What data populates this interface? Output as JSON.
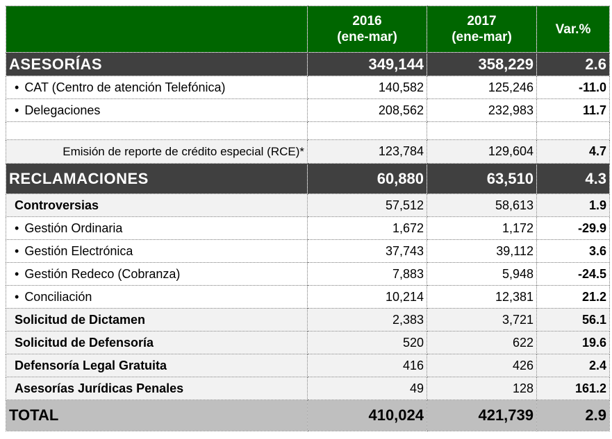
{
  "header": {
    "col_2016": "2016\n(ene-mar)",
    "col_2016_year": "2016",
    "col_2016_period": "(ene-mar)",
    "col_2017_year": "2017",
    "col_2017_period": "(ene-mar)",
    "col_var": "Var.%"
  },
  "colors": {
    "header_green": "#006600",
    "section_dark": "#404040",
    "total_gray": "#bfbfbf",
    "row_light": "#f2f2f2"
  },
  "asesorias": {
    "label": "ASESORÍAS",
    "v2016": "349,144",
    "v2017": "358,229",
    "var": "2.6",
    "rows": [
      {
        "label": "CAT (Centro de atención Telefónica)",
        "v2016": "140,582",
        "v2017": "125,246",
        "var": "-11.0"
      },
      {
        "label": "Delegaciones",
        "v2016": "208,562",
        "v2017": "232,983",
        "var": "11.7"
      }
    ],
    "rce": {
      "label": "Emisión de reporte de crédito especial (RCE)*",
      "v2016": "123,784",
      "v2017": "129,604",
      "var": "4.7"
    }
  },
  "reclamaciones": {
    "label": "RECLAMACIONES",
    "v2016": "60,880",
    "v2017": "63,510",
    "var": "4.3",
    "rows": [
      {
        "type": "sub",
        "label": "Controversias",
        "v2016": "57,512",
        "v2017": "58,613",
        "var": "1.9"
      },
      {
        "type": "bullet",
        "label": "Gestión Ordinaria",
        "v2016": "1,672",
        "v2017": "1,172",
        "var": "-29.9"
      },
      {
        "type": "bullet",
        "label": "Gestión Electrónica",
        "v2016": "37,743",
        "v2017": "39,112",
        "var": "3.6"
      },
      {
        "type": "bullet",
        "label": "Gestión Redeco (Cobranza)",
        "v2016": "7,883",
        "v2017": "5,948",
        "var": "-24.5"
      },
      {
        "type": "bullet",
        "label": "Conciliación",
        "v2016": "10,214",
        "v2017": "12,381",
        "var": "21.2"
      },
      {
        "type": "sub",
        "label": "Solicitud de Dictamen",
        "v2016": "2,383",
        "v2017": "3,721",
        "var": "56.1"
      },
      {
        "type": "sub",
        "label": "Solicitud de Defensoría",
        "v2016": "520",
        "v2017": "622",
        "var": "19.6"
      },
      {
        "type": "sub",
        "label": "Defensoría Legal Gratuita",
        "v2016": "416",
        "v2017": "426",
        "var": "2.4"
      },
      {
        "type": "sub",
        "label": "Asesorías Jurídicas Penales",
        "v2016": "49",
        "v2017": "128",
        "var": "161.2"
      }
    ]
  },
  "total": {
    "label": "TOTAL",
    "v2016": "410,024",
    "v2017": "421,739",
    "var": "2.9"
  },
  "bullet_char": "•"
}
